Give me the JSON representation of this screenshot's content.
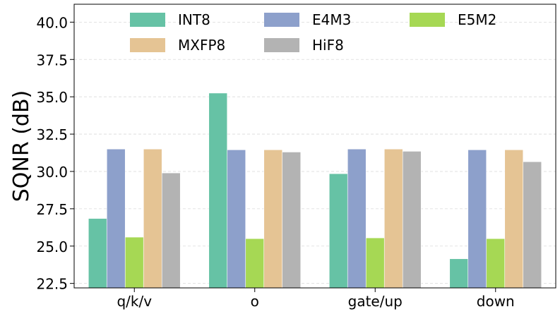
{
  "chart_data": {
    "type": "bar",
    "title": "",
    "xlabel": "",
    "ylabel": "SQNR (dB)",
    "categories": [
      "q/k/v",
      "o",
      "gate/up",
      "down"
    ],
    "ylim": [
      22.2,
      41.2
    ],
    "yticks": [
      22.5,
      25.0,
      27.5,
      30.0,
      32.5,
      35.0,
      37.5,
      40.0
    ],
    "ytick_labels": [
      "22.5",
      "25.0",
      "27.5",
      "30.0",
      "32.5",
      "35.0",
      "37.5",
      "40.0"
    ],
    "grid": "y-dashed",
    "legend_position": "top",
    "series": [
      {
        "name": "INT8",
        "color": "#66c2a5",
        "values": [
          26.85,
          35.25,
          29.85,
          24.15
        ]
      },
      {
        "name": "E4M3",
        "color": "#8da0cb",
        "values": [
          31.5,
          31.45,
          31.5,
          31.45
        ]
      },
      {
        "name": "E5M2",
        "color": "#a6d854",
        "values": [
          25.6,
          25.5,
          25.55,
          25.5
        ]
      },
      {
        "name": "MXFP8",
        "color": "#e5c494",
        "values": [
          31.5,
          31.45,
          31.5,
          31.45
        ]
      },
      {
        "name": "HiF8",
        "color": "#b3b3b3",
        "values": [
          29.9,
          31.3,
          31.35,
          30.65
        ]
      }
    ]
  }
}
